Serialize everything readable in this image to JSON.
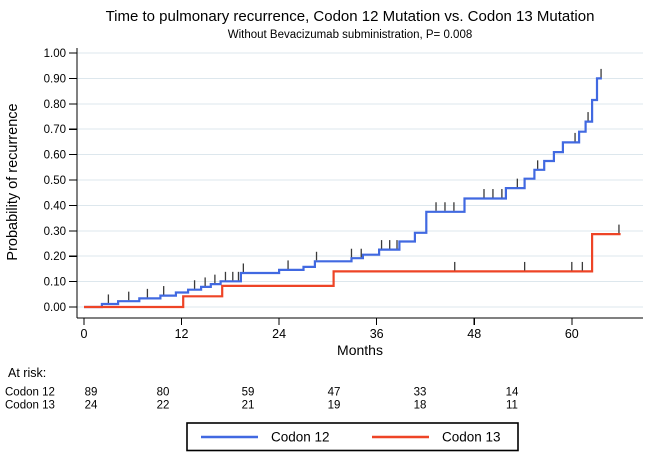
{
  "chart_data": {
    "type": "line",
    "style": "kaplan-meier-step-cumulative-incidence",
    "title": "Time to pulmonary recurrence, Codon 12 Mutation vs. Codon 13 Mutation",
    "subtitle": "Without Bevacizumab subministration, P= 0.008",
    "p_value": "0.008",
    "xlabel": "Months",
    "ylabel": "Probability of  recurrence",
    "xlim": [
      0,
      69
    ],
    "ylim": [
      0,
      1
    ],
    "xticks": [
      0,
      12,
      24,
      36,
      48,
      60
    ],
    "ytick_labels": [
      "0.00",
      "0.10",
      "0.20",
      "0.30",
      "0.40",
      "0.50",
      "0.60",
      "0.70",
      "0.80",
      "0.90",
      "1.00"
    ],
    "grid": "horizontal",
    "grid_color": "#dde7ed",
    "censor_tick_color": "#3a3a3a",
    "legend_position": "bottom",
    "series": [
      {
        "name": "Codon 12",
        "color": "#4169e1",
        "steps": [
          [
            0,
            0.0
          ],
          [
            2.2,
            0.012
          ],
          [
            4.2,
            0.023
          ],
          [
            6.8,
            0.034
          ],
          [
            9.4,
            0.045
          ],
          [
            11.3,
            0.057
          ],
          [
            12.8,
            0.068
          ],
          [
            14.4,
            0.079
          ],
          [
            15.6,
            0.09
          ],
          [
            16.8,
            0.101
          ],
          [
            19.3,
            0.134
          ],
          [
            24.0,
            0.146
          ],
          [
            27.0,
            0.158
          ],
          [
            28.4,
            0.18
          ],
          [
            32.9,
            0.192
          ],
          [
            34.3,
            0.206
          ],
          [
            36.3,
            0.226
          ],
          [
            38.8,
            0.258
          ],
          [
            40.7,
            0.292
          ],
          [
            42.1,
            0.375
          ],
          [
            46.8,
            0.427
          ],
          [
            51.9,
            0.468
          ],
          [
            54.2,
            0.505
          ],
          [
            55.4,
            0.54
          ],
          [
            56.6,
            0.575
          ],
          [
            57.8,
            0.61
          ],
          [
            58.9,
            0.648
          ],
          [
            60.9,
            0.69
          ],
          [
            61.7,
            0.73
          ],
          [
            62.5,
            0.815
          ],
          [
            63.1,
            0.9
          ]
        ],
        "end_month": 63.7,
        "censor_months": [
          3.0,
          5.5,
          7.8,
          9.8,
          13.6,
          14.9,
          16.1,
          17.4,
          18.3,
          19.0,
          19.6,
          25.1,
          28.6,
          32.9,
          34.1,
          36.6,
          37.6,
          38.5,
          43.3,
          44.4,
          45.5,
          49.2,
          50.3,
          51.4,
          53.3,
          55.8,
          60.4,
          62.0,
          63.6
        ]
      },
      {
        "name": "Codon 13",
        "color": "#ee4426",
        "steps": [
          [
            0,
            0.0
          ],
          [
            12.2,
            0.042
          ],
          [
            17.0,
            0.083
          ],
          [
            30.7,
            0.14
          ],
          [
            62.5,
            0.287
          ]
        ],
        "end_month": 66.0,
        "censor_months": [
          45.6,
          54.2,
          60.0,
          61.3,
          65.8
        ]
      }
    ]
  },
  "at_risk": {
    "heading": "At risk:",
    "rows": [
      {
        "label": "Codon 12",
        "counts": [
          "89",
          "80",
          "59",
          "47",
          "33",
          "14"
        ]
      },
      {
        "label": "Codon 13",
        "counts": [
          "24",
          "22",
          "21",
          "19",
          "18",
          "11"
        ]
      }
    ]
  },
  "legend": {
    "items": [
      {
        "label": "Codon 12",
        "color": "#4169e1"
      },
      {
        "label": "Codon 13",
        "color": "#ee4426"
      }
    ]
  }
}
